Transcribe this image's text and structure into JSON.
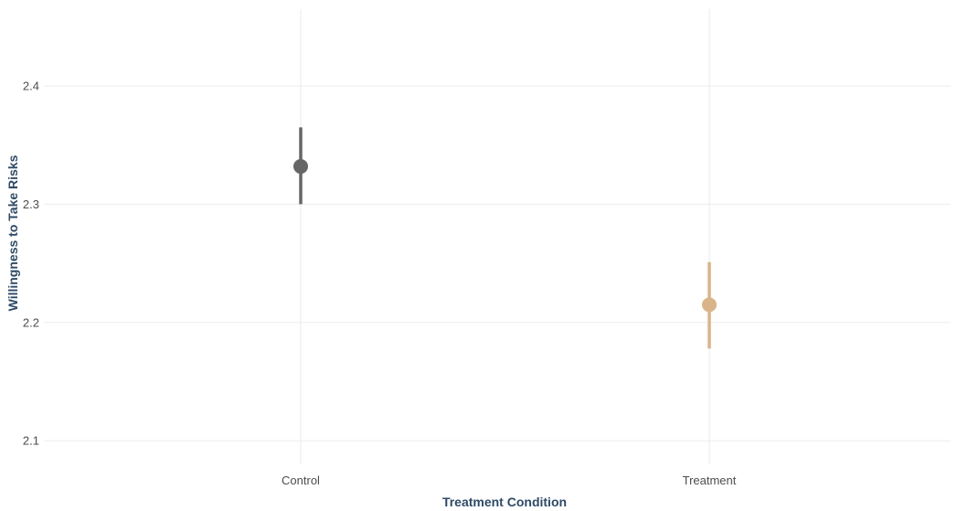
{
  "chart_data": {
    "type": "scatter",
    "title": "",
    "xlabel": "Treatment Condition",
    "ylabel": "Willingness to Take Risks",
    "categories": [
      "Control",
      "Treatment"
    ],
    "ylim": [
      2.08,
      2.465
    ],
    "yticks": [
      "2.1",
      "2.2",
      "2.3",
      "2.4"
    ],
    "grid": true,
    "legend": "none",
    "points": [
      {
        "category": "Control",
        "mean": 2.332,
        "lower": 2.3,
        "upper": 2.365,
        "color": "#666666"
      },
      {
        "category": "Treatment",
        "mean": 2.215,
        "lower": 2.178,
        "upper": 2.251,
        "color": "#d9b48a"
      }
    ]
  }
}
